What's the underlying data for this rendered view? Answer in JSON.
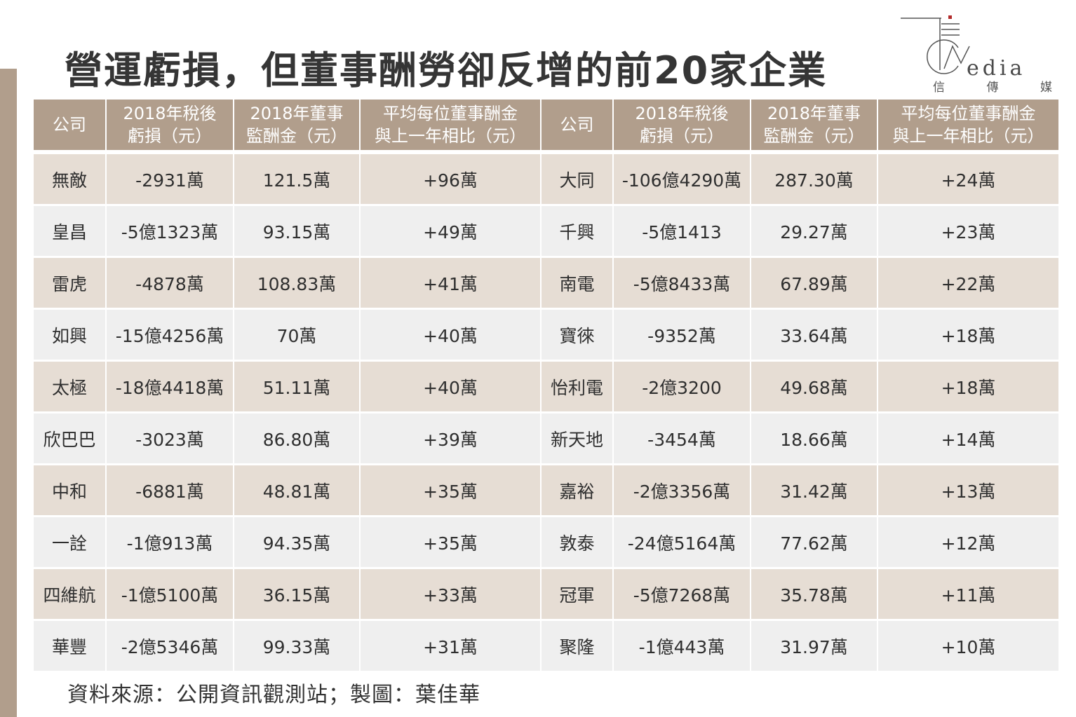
{
  "title": "營運虧損，但董事酬勞卻反增的前20家企業",
  "logo": {
    "word": "edia",
    "sub": [
      "信",
      "傳",
      "媒"
    ]
  },
  "headers": {
    "company": "公司",
    "loss": [
      "2018年稅後",
      "虧損（元）"
    ],
    "pay": [
      "2018年董事",
      "監酬金（元）"
    ],
    "avg": [
      "平均每位董事酬金",
      "與上一年相比（元）"
    ]
  },
  "rows": [
    [
      {
        "company": "無敵",
        "loss": "-2931萬",
        "pay": "121.5萬",
        "avg": "+96萬"
      },
      {
        "company": "大同",
        "loss": "-106億4290萬",
        "pay": "287.30萬",
        "avg": "+24萬"
      }
    ],
    [
      {
        "company": "皇昌",
        "loss": "-5億1323萬",
        "pay": "93.15萬",
        "avg": "+49萬"
      },
      {
        "company": "千興",
        "loss": "-5億1413",
        "pay": "29.27萬",
        "avg": "+23萬"
      }
    ],
    [
      {
        "company": "雷虎",
        "loss": "-4878萬",
        "pay": "108.83萬",
        "avg": "+41萬"
      },
      {
        "company": "南電",
        "loss": "-5億8433萬",
        "pay": "67.89萬",
        "avg": "+22萬"
      }
    ],
    [
      {
        "company": "如興",
        "loss": "-15億4256萬",
        "pay": "70萬",
        "avg": "+40萬"
      },
      {
        "company": "寶徠",
        "loss": "-9352萬",
        "pay": "33.64萬",
        "avg": "+18萬"
      }
    ],
    [
      {
        "company": "太極",
        "loss": "-18億4418萬",
        "pay": "51.11萬",
        "avg": "+40萬"
      },
      {
        "company": "怡利電",
        "loss": "-2億3200",
        "pay": "49.68萬",
        "avg": "+18萬"
      }
    ],
    [
      {
        "company": "欣巴巴",
        "loss": "-3023萬",
        "pay": "86.80萬",
        "avg": "+39萬"
      },
      {
        "company": "新天地",
        "loss": "-3454萬",
        "pay": "18.66萬",
        "avg": "+14萬"
      }
    ],
    [
      {
        "company": "中和",
        "loss": "-6881萬",
        "pay": "48.81萬",
        "avg": "+35萬"
      },
      {
        "company": "嘉裕",
        "loss": "-2億3356萬",
        "pay": "31.42萬",
        "avg": "+13萬"
      }
    ],
    [
      {
        "company": "一詮",
        "loss": "-1億913萬",
        "pay": "94.35萬",
        "avg": "+35萬"
      },
      {
        "company": "敦泰",
        "loss": "-24億5164萬",
        "pay": "77.62萬",
        "avg": "+12萬"
      }
    ],
    [
      {
        "company": "四維航",
        "loss": "-1億5100萬",
        "pay": "36.15萬",
        "avg": "+33萬"
      },
      {
        "company": "冠軍",
        "loss": "-5億7268萬",
        "pay": "35.78萬",
        "avg": "+11萬"
      }
    ],
    [
      {
        "company": "華豐",
        "loss": "-2億5346萬",
        "pay": "99.33萬",
        "avg": "+31萬"
      },
      {
        "company": "聚隆",
        "loss": "-1億443萬",
        "pay": "31.97萬",
        "avg": "+10萬"
      }
    ]
  ],
  "source": "資料來源：公開資訊觀測站；製圖：葉佳華",
  "colors": {
    "header_bg": "#b19e8c",
    "row_odd": "#e6ddd4",
    "row_even": "#efefef",
    "side_bar": "#b19e8c"
  }
}
